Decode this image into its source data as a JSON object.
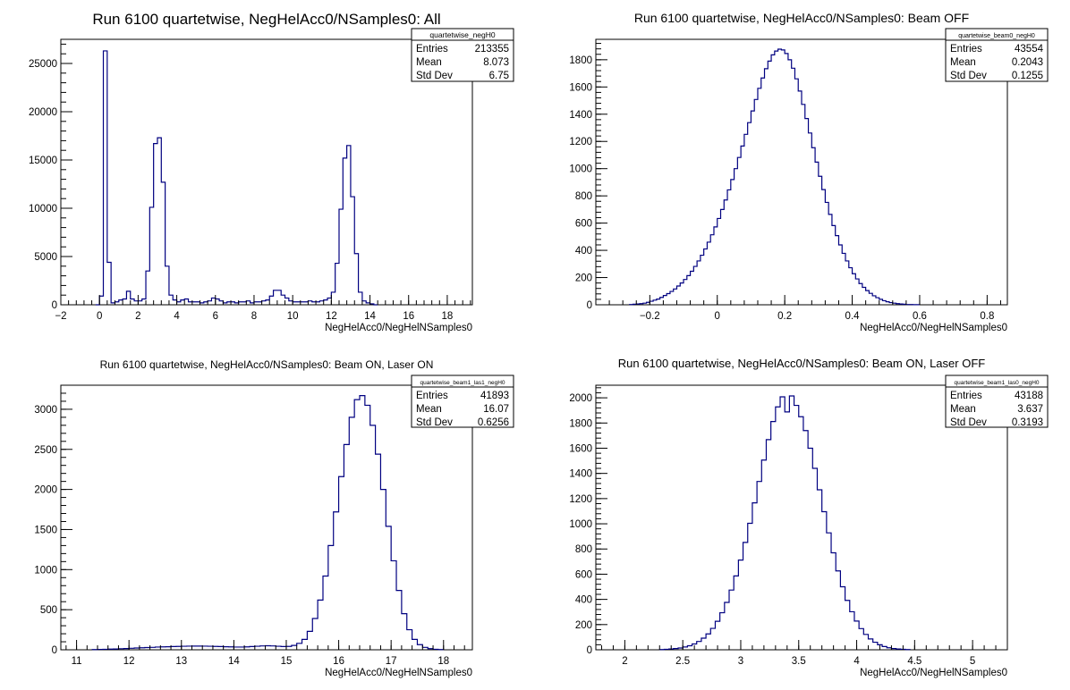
{
  "window": {
    "title": ""
  },
  "colors": {
    "line": "#000080",
    "frame": "#000000",
    "background": "#ffffff"
  },
  "chart_data": [
    {
      "type": "histogram",
      "title": "Run 6100 quartetwise, NegHelAcc0/NSamples0: All",
      "xlabel": "NegHelAcc0/NegHelNSamples0",
      "ylabel": "",
      "xlim": [
        -2,
        19.3
      ],
      "ylim": [
        0,
        27500
      ],
      "x_ticks": [
        -2,
        0,
        2,
        4,
        6,
        8,
        10,
        12,
        14,
        16,
        18
      ],
      "y_ticks": [
        0,
        5000,
        10000,
        15000,
        20000,
        25000
      ],
      "bin_start": -0.2,
      "bin_width": 0.2,
      "values": [
        0,
        900,
        26300,
        4400,
        200,
        300,
        500,
        600,
        1400,
        600,
        400,
        400,
        600,
        3500,
        10100,
        16700,
        17300,
        12700,
        4000,
        1000,
        500,
        300,
        500,
        600,
        300,
        300,
        300,
        200,
        300,
        400,
        700,
        600,
        400,
        200,
        300,
        300,
        200,
        300,
        300,
        400,
        200,
        300,
        300,
        400,
        500,
        900,
        1500,
        1500,
        1000,
        700,
        400,
        300,
        300,
        300,
        300,
        400,
        300,
        300,
        400,
        500,
        700,
        1300,
        4300,
        9900,
        15200,
        16500,
        11200,
        5300,
        1300,
        400,
        200,
        100,
        0
      ],
      "stats": {
        "name": "quartetwise_negH0",
        "rows": [
          [
            "Entries",
            "213355"
          ],
          [
            "Mean",
            "8.073"
          ],
          [
            "Std Dev",
            "6.75"
          ]
        ]
      }
    },
    {
      "type": "histogram",
      "title": "Run 6100 quartetwise, NegHelAcc0/NSamples0: Beam OFF",
      "xlabel": "NegHelAcc0/NegHelNSamples0",
      "ylabel": "",
      "xlim": [
        -0.36,
        0.86
      ],
      "ylim": [
        0,
        1950
      ],
      "x_ticks": [
        -0.2,
        0,
        0.2,
        0.4,
        0.6,
        0.8
      ],
      "y_ticks": [
        0,
        200,
        400,
        600,
        800,
        1000,
        1200,
        1400,
        1600,
        1800
      ],
      "bin_start": -0.26,
      "bin_width": 0.01,
      "values": [
        2,
        4,
        6,
        8,
        12,
        18,
        26,
        34,
        42,
        54,
        68,
        82,
        98,
        116,
        138,
        160,
        186,
        214,
        246,
        282,
        322,
        364,
        410,
        460,
        514,
        572,
        634,
        700,
        770,
        844,
        920,
        1000,
        1082,
        1166,
        1252,
        1338,
        1424,
        1508,
        1590,
        1666,
        1734,
        1790,
        1836,
        1864,
        1878,
        1872,
        1846,
        1800,
        1738,
        1660,
        1570,
        1472,
        1368,
        1262,
        1154,
        1048,
        944,
        846,
        752,
        664,
        582,
        508,
        440,
        378,
        322,
        272,
        228,
        190,
        156,
        128,
        104,
        84,
        66,
        52,
        40,
        30,
        22,
        16,
        12,
        8,
        6,
        4,
        2,
        2,
        1,
        1
      ],
      "stats": {
        "name": "quartetwise_beam0_negH0",
        "rows": [
          [
            "Entries",
            "43554"
          ],
          [
            "Mean",
            "0.2043"
          ],
          [
            "Std Dev",
            "0.1255"
          ]
        ]
      }
    },
    {
      "type": "histogram",
      "title": "Run 6100 quartetwise, NegHelAcc0/NSamples0: Beam ON, Laser ON",
      "xlabel": "NegHelAcc0/NegHelNSamples0",
      "ylabel": "",
      "xlim": [
        10.7,
        18.55
      ],
      "ylim": [
        0,
        3300
      ],
      "x_ticks": [
        11,
        12,
        13,
        14,
        15,
        16,
        17,
        18
      ],
      "y_ticks": [
        0,
        500,
        1000,
        1500,
        2000,
        2500,
        3000
      ],
      "bin_start": 11.3,
      "bin_width": 0.1,
      "values": [
        3,
        5,
        6,
        8,
        10,
        13,
        15,
        19,
        22,
        25,
        28,
        30,
        34,
        36,
        38,
        40,
        42,
        44,
        45,
        46,
        46,
        45,
        44,
        42,
        40,
        38,
        36,
        34,
        34,
        36,
        40,
        44,
        48,
        50,
        48,
        44,
        40,
        42,
        54,
        80,
        130,
        230,
        390,
        620,
        920,
        1300,
        1720,
        2160,
        2560,
        2900,
        3120,
        3170,
        3050,
        2800,
        2440,
        2000,
        1540,
        1110,
        740,
        450,
        250,
        130,
        64,
        30,
        14,
        6,
        3
      ],
      "stats": {
        "name": "quartetwise_beam1_las1_negH0",
        "rows": [
          [
            "Entries",
            "41893"
          ],
          [
            "Mean",
            "16.07"
          ],
          [
            "Std Dev",
            "0.6256"
          ]
        ]
      }
    },
    {
      "type": "histogram",
      "title": "Run 6100 quartetwise, NegHelAcc0/NSamples0: Beam ON, Laser OFF",
      "xlabel": "NegHelAcc0/NegHelNSamples0",
      "ylabel": "",
      "xlim": [
        1.75,
        5.3
      ],
      "ylim": [
        0,
        2100
      ],
      "x_ticks": [
        2,
        2.5,
        3,
        3.5,
        4,
        4.5,
        5
      ],
      "y_ticks": [
        0,
        200,
        400,
        600,
        800,
        1000,
        1200,
        1400,
        1600,
        1800,
        2000
      ],
      "bin_start": 2.3,
      "bin_width": 0.04,
      "values": [
        2,
        4,
        6,
        10,
        14,
        22,
        32,
        46,
        66,
        92,
        126,
        170,
        226,
        294,
        376,
        474,
        586,
        712,
        852,
        1004,
        1166,
        1336,
        1506,
        1668,
        1812,
        1928,
        2008,
        1888,
        2015,
        1940,
        1850,
        1740,
        1600,
        1440,
        1270,
        1096,
        928,
        770,
        626,
        500,
        392,
        302,
        228,
        168,
        122,
        86,
        60,
        40,
        26,
        16,
        10,
        6,
        4,
        2
      ],
      "stats": {
        "name": "quartetwise_beam1_las0_negH0",
        "rows": [
          [
            "Entries",
            "43188"
          ],
          [
            "Mean",
            "3.637"
          ],
          [
            "Std Dev",
            "0.3193"
          ]
        ]
      }
    }
  ]
}
